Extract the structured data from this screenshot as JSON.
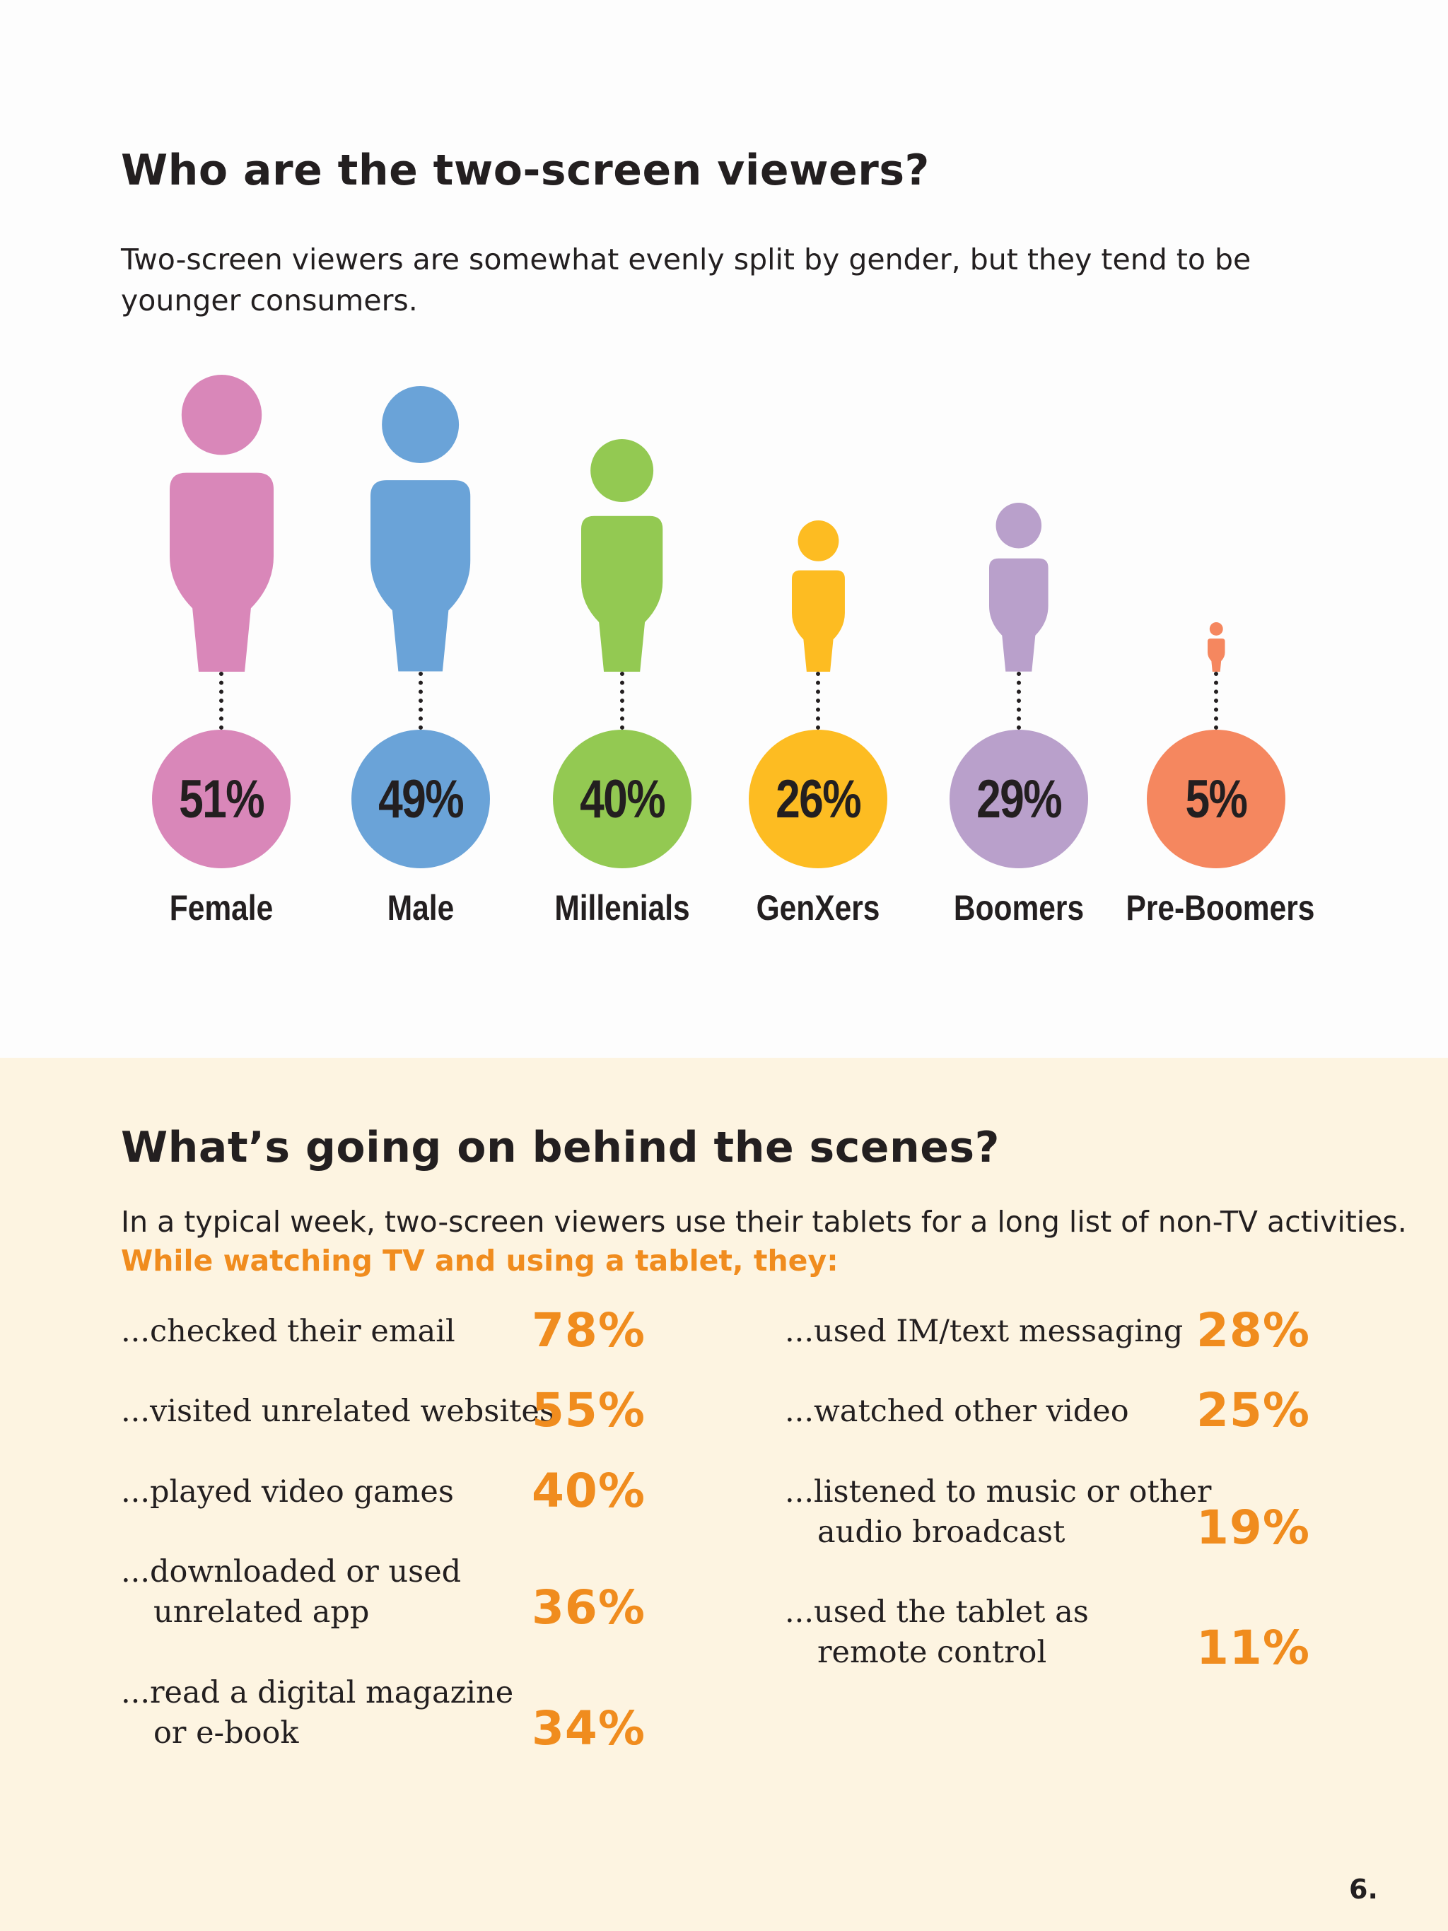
{
  "section1": {
    "title": "Who are the two-screen viewers?",
    "intro": "Two-screen viewers are somewhat evenly split by gender, but they tend to be younger consumers."
  },
  "chart_data": {
    "type": "bar",
    "categories": [
      "Female",
      "Male",
      "Millenials",
      "GenXers",
      "Boomers",
      "Pre-Boomers"
    ],
    "values": [
      51,
      49,
      40,
      26,
      29,
      5
    ],
    "value_labels": [
      "51%",
      "49%",
      "40%",
      "26%",
      "29%",
      "5%"
    ],
    "colors": [
      "#d987b9",
      "#6aa3d8",
      "#93c952",
      "#fdbc22",
      "#b9a0cb",
      "#f5875f"
    ]
  },
  "section2": {
    "title": "What’s going on behind the scenes?",
    "intro": "In a typical week, two-screen viewers use their tablets for a long list of non-TV activities.",
    "subhead": "While watching TV and using a tablet, they:",
    "left": [
      {
        "line1": "...checked their email",
        "line2": "",
        "value": "78%"
      },
      {
        "line1": "...visited unrelated websites",
        "line2": "",
        "value": "55%"
      },
      {
        "line1": "...played video games",
        "line2": "",
        "value": "40%"
      },
      {
        "line1": "...downloaded or used",
        "line2": "unrelated app",
        "value": "36%"
      },
      {
        "line1": "...read a digital magazine",
        "line2": "or e-book",
        "value": "34%"
      }
    ],
    "right": [
      {
        "line1": "...used IM/text messaging",
        "line2": "",
        "value": "28%"
      },
      {
        "line1": "...watched other video",
        "line2": "",
        "value": "25%"
      },
      {
        "line1": "...listened to music or other",
        "line2": "audio broadcast",
        "value": "19%"
      },
      {
        "line1": "...used the tablet as",
        "line2": "remote control",
        "value": "11%"
      }
    ]
  },
  "page_number": "6."
}
